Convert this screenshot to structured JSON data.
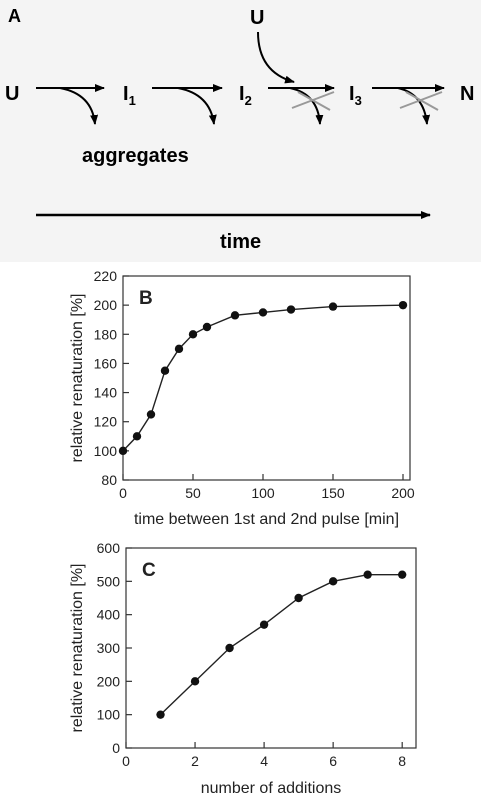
{
  "scheme": {
    "panel_label": "A",
    "states": {
      "u": "U",
      "i1": "I",
      "i1_sub": "1",
      "i2": "I",
      "i2_sub": "2",
      "i3": "I",
      "i3_sub": "3",
      "n": "N"
    },
    "added_species": "U",
    "aggregates_label": "aggregates",
    "time_label": "time"
  },
  "chart_data": [
    {
      "type": "line",
      "panel_label": "B",
      "xlabel": "time between 1st and 2nd pulse [min]",
      "ylabel": "relative renaturation [%]",
      "xlim": [
        0,
        205
      ],
      "ylim": [
        80,
        220
      ],
      "xticks": [
        0,
        50,
        100,
        150,
        200
      ],
      "yticks": [
        80,
        100,
        120,
        140,
        160,
        180,
        200,
        220
      ],
      "grid": false,
      "x": [
        0,
        10,
        20,
        30,
        40,
        50,
        60,
        80,
        100,
        120,
        150,
        200
      ],
      "y": [
        100,
        110,
        125,
        155,
        170,
        180,
        185,
        193,
        195,
        197,
        199,
        200
      ]
    },
    {
      "type": "line",
      "panel_label": "C",
      "xlabel": "number of additions",
      "ylabel": "relative renaturation [%]",
      "xlim": [
        0,
        8.4
      ],
      "ylim": [
        0,
        600
      ],
      "xticks": [
        0,
        2,
        4,
        6,
        8
      ],
      "yticks": [
        0,
        100,
        200,
        300,
        400,
        500,
        600
      ],
      "grid": false,
      "x": [
        1,
        2,
        3,
        4,
        5,
        6,
        7,
        8
      ],
      "y": [
        100,
        200,
        300,
        370,
        450,
        500,
        520,
        520
      ]
    }
  ]
}
